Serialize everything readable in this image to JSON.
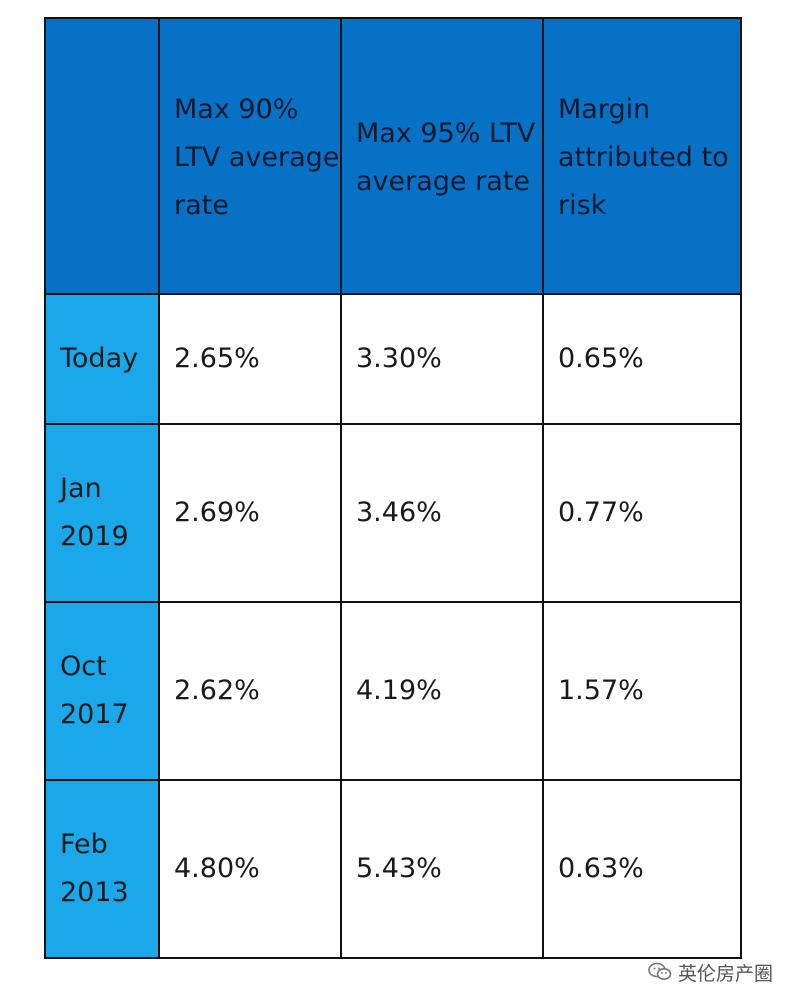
{
  "table": {
    "headers": [
      "",
      "Max 90% LTV average rate",
      "Max 95% LTV average rate",
      "Margin attributed to risk"
    ],
    "rows": [
      {
        "label": "Today",
        "cells": [
          "2.65%",
          "3.30%",
          "0.65%"
        ]
      },
      {
        "label": "Jan 2019",
        "cells": [
          "2.69%",
          "3.46%",
          "0.77%"
        ]
      },
      {
        "label": "Oct 2017",
        "cells": [
          "2.62%",
          "4.19%",
          "1.57%"
        ]
      },
      {
        "label": "Feb 2013",
        "cells": [
          "4.80%",
          "5.43%",
          "0.63%"
        ]
      }
    ]
  },
  "colors": {
    "header_background": "#0771c6",
    "row_label_background": "#1ba8ea",
    "cell_background": "#ffffff",
    "border": "#111111"
  },
  "watermark": {
    "text": "英伦房产圈",
    "icon": "wechat-icon"
  }
}
